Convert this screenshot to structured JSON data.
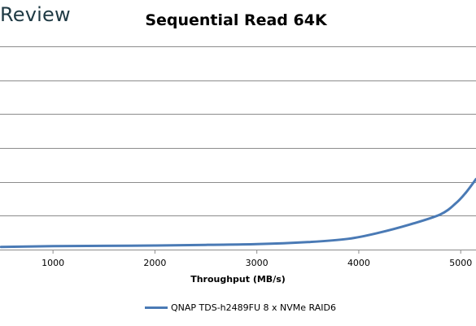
{
  "brand": {
    "text": "Review"
  },
  "chart_data": {
    "type": "line",
    "title": "Sequential Read 64K",
    "xlabel": "Throughput (MB/s)",
    "ylabel": "",
    "xlim": [
      480,
      5150
    ],
    "ylim": [
      0,
      30
    ],
    "y_gridlines": [
      5,
      10,
      15,
      20,
      25,
      30
    ],
    "grid": true,
    "legend_position": "bottom",
    "x_ticks": [
      {
        "value": 1000,
        "label": "1000"
      },
      {
        "value": 2000,
        "label": "2000"
      },
      {
        "value": 3000,
        "label": "3000"
      },
      {
        "value": 4000,
        "label": "4000"
      },
      {
        "value": 5000,
        "label": "5000"
      }
    ],
    "series": [
      {
        "name": "QNAP TDS-h2489FU 8 x NVMe RAID6",
        "color": "#4a7ab5",
        "points": [
          [
            490,
            0.4
          ],
          [
            1000,
            0.5
          ],
          [
            1500,
            0.55
          ],
          [
            2000,
            0.6
          ],
          [
            2500,
            0.7
          ],
          [
            3000,
            0.8
          ],
          [
            3500,
            1.1
          ],
          [
            3900,
            1.6
          ],
          [
            4200,
            2.5
          ],
          [
            4500,
            3.7
          ],
          [
            4800,
            5.2
          ],
          [
            4950,
            6.8
          ],
          [
            5050,
            8.4
          ],
          [
            5150,
            10.4
          ]
        ]
      }
    ]
  }
}
